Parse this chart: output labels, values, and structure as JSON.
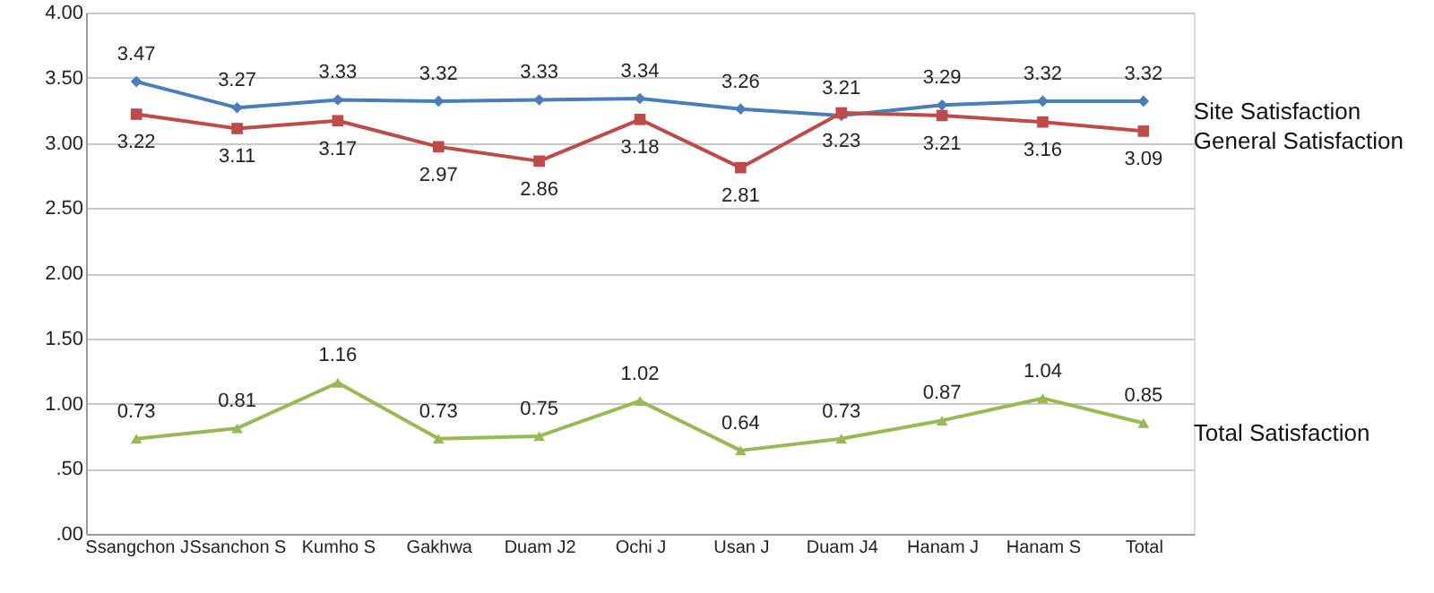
{
  "chart_data": {
    "type": "line",
    "categories": [
      "Ssangchon J",
      "Ssanchon S",
      "Kumho S",
      "Gakhwa",
      "Duam J2",
      "Ochi J",
      "Usan J",
      "Duam J4",
      "Hanam J",
      "Hanam S",
      "Total"
    ],
    "series": [
      {
        "name": "Site Satisfaction",
        "color": "#4a7ebb",
        "marker": "diamond",
        "values": [
          3.47,
          3.27,
          3.33,
          3.32,
          3.33,
          3.34,
          3.26,
          3.21,
          3.29,
          3.32,
          3.32
        ]
      },
      {
        "name": "General Satisfaction",
        "color": "#be4b48",
        "marker": "square",
        "values": [
          3.22,
          3.11,
          3.17,
          2.97,
          2.86,
          3.18,
          2.81,
          3.23,
          3.21,
          3.16,
          3.09
        ]
      },
      {
        "name": "Total Satisfaction",
        "color": "#98b954",
        "marker": "triangle",
        "values": [
          0.73,
          0.81,
          1.16,
          0.73,
          0.75,
          1.02,
          0.64,
          0.73,
          0.87,
          1.04,
          0.85
        ]
      }
    ],
    "ylim": [
      0,
      4
    ],
    "yticks": [
      {
        "value": 0,
        "label": ".00"
      },
      {
        "value": 0.5,
        "label": ".50"
      },
      {
        "value": 1,
        "label": "1.00"
      },
      {
        "value": 1.5,
        "label": "1.50"
      },
      {
        "value": 2,
        "label": "2.00"
      },
      {
        "value": 2.5,
        "label": "2.50"
      },
      {
        "value": 3,
        "label": "3.00"
      },
      {
        "value": 3.5,
        "label": "3.50"
      },
      {
        "value": 4,
        "label": "4.00"
      }
    ],
    "grid": "y",
    "data_labels": true
  }
}
